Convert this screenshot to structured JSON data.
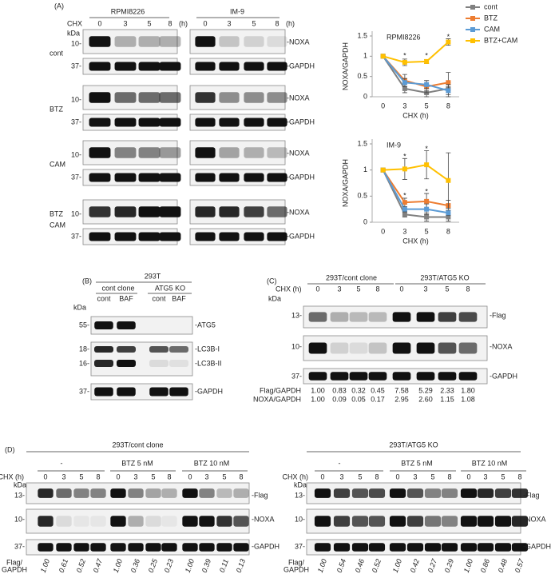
{
  "chart_data": [
    {
      "type": "line",
      "title": "RPMI8226",
      "categories": [
        "0",
        "3",
        "5",
        "8"
      ],
      "series": [
        {
          "name": "cont",
          "color": "#808080",
          "values": [
            1,
            0.2,
            0.1,
            0.2
          ],
          "errors": [
            0,
            0.1,
            0.1,
            0.15
          ]
        },
        {
          "name": "BTZ",
          "color": "#ed7d31",
          "values": [
            1,
            0.4,
            0.25,
            0.35
          ],
          "errors": [
            0,
            0.15,
            0.15,
            0.25
          ]
        },
        {
          "name": "CAM",
          "color": "#5b9bd5",
          "values": [
            1,
            0.35,
            0.3,
            0.15
          ],
          "errors": [
            0,
            0.1,
            0.1,
            0.15
          ]
        },
        {
          "name": "BTZ+CAM",
          "color": "#ffc000",
          "values": [
            1,
            0.85,
            0.87,
            1.35
          ],
          "errors": [
            0,
            0.08,
            0.05,
            0.08
          ]
        }
      ],
      "ylim": [
        0,
        1.5
      ],
      "yticks": [
        0,
        0.5,
        1,
        1.5
      ],
      "xlabel": "CHX (h)",
      "ylabel": "NOXA/GAPDH",
      "legend": "top-right",
      "annotations": [
        {
          "text": "*",
          "x": 1,
          "y": 1.0
        },
        {
          "text": "*",
          "x": 2,
          "y": 1.0
        },
        {
          "text": "*",
          "x": 3,
          "y": 1.47
        }
      ]
    },
    {
      "type": "line",
      "title": "IM-9",
      "categories": [
        "0",
        "3",
        "5",
        "8"
      ],
      "series": [
        {
          "color": "#808080",
          "values": [
            1,
            0.15,
            0.1,
            0.1
          ],
          "errors": [
            0,
            0.05,
            0.08,
            0.08
          ]
        },
        {
          "color": "#ed7d31",
          "values": [
            1,
            0.38,
            0.4,
            0.32
          ],
          "errors": [
            0,
            0.08,
            0.15,
            0.1
          ]
        },
        {
          "color": "#5b9bd5",
          "values": [
            1,
            0.25,
            0.25,
            0.18
          ],
          "errors": [
            0,
            0.05,
            0.1,
            0.05
          ]
        },
        {
          "color": "#ffc000",
          "values": [
            1,
            1.02,
            1.1,
            0.8
          ],
          "errors": [
            0,
            0.2,
            0.27,
            0.53
          ]
        }
      ],
      "ylim": [
        0,
        1.5
      ],
      "yticks": [
        0,
        0.5,
        1,
        1.5
      ],
      "xlabel": "CHX (h)",
      "ylabel": "NOXA/GAPDH",
      "annotations": [
        {
          "text": "*",
          "x": 1,
          "y": 1.25
        },
        {
          "text": "*",
          "x": 2,
          "y": 1.4
        },
        {
          "text": "*",
          "x": 1,
          "y": 0.5
        },
        {
          "text": "*",
          "x": 2,
          "y": 0.58
        }
      ]
    }
  ],
  "panel_a": {
    "label": "(A)",
    "cell_lines": [
      "RPMI8226",
      "IM-9"
    ],
    "chx": "CHX",
    "times": [
      "0",
      "3",
      "5",
      "8"
    ],
    "unit": "(h)",
    "kda": "kDa",
    "markers": [
      "10-",
      "37-"
    ],
    "proteins": [
      "-NOXA",
      "-GAPDH"
    ],
    "treatments": [
      [
        "cont"
      ],
      [
        "BTZ"
      ],
      [
        "CAM"
      ],
      [
        "BTZ",
        "CAM"
      ]
    ]
  },
  "panel_b": {
    "label": "(B)",
    "cell": "293T",
    "clones": [
      "cont clone",
      "ATG5 KO"
    ],
    "lanes": [
      "cont",
      "BAF",
      "cont",
      "BAF"
    ],
    "kda": "kDa",
    "markers": [
      "55-",
      "18-",
      "16-",
      "37-"
    ],
    "proteins": [
      "-ATG5",
      "-LC3B-I",
      "-LC3B-II",
      "-GAPDH"
    ]
  },
  "panel_c": {
    "label": "(C)",
    "clones": [
      "293T/cont clone",
      "293T/ATG5 KO"
    ],
    "chx": "CHX (h)",
    "times": [
      "0",
      "3",
      "5",
      "8"
    ],
    "kda": "kDa",
    "markers": [
      "13-",
      "10-",
      "37-"
    ],
    "proteins": [
      "-Flag",
      "-NOXA",
      "-GAPDH"
    ],
    "ratios": [
      {
        "name": "Flag/GAPDH",
        "values": [
          "1.00",
          "0.83",
          "0.32",
          "0.45",
          "7.58",
          "5.29",
          "2.33",
          "1.80"
        ]
      },
      {
        "name": "NOXA/GAPDH",
        "values": [
          "1.00",
          "0.09",
          "0.05",
          "0.17",
          "2.95",
          "2.60",
          "1.15",
          "1.08"
        ]
      }
    ]
  },
  "panel_d": {
    "label": "(D)",
    "chx": "CHX (h)",
    "times": [
      "0",
      "3",
      "5",
      "8"
    ],
    "kda": "kDa",
    "conditions": [
      "-",
      "BTZ 5 nM",
      "BTZ 10 nM"
    ],
    "markers": [
      "13-",
      "10-",
      "37-"
    ],
    "proteins": [
      "-Flag",
      "-NOXA",
      "-GAPDH"
    ],
    "ratio_label": [
      "Flag/",
      "GAPDH"
    ],
    "blots": [
      {
        "title": "293T/cont clone",
        "ratios": [
          "1.00",
          "0.61",
          "0.52",
          "0.47",
          "1.00",
          "0.36",
          "0.25",
          "0.23",
          "1.00",
          "0.39",
          "0.11",
          "0.13"
        ]
      },
      {
        "title": "293T/ATG5 KO",
        "ratios": [
          "1.00",
          "0.54",
          "0.46",
          "0.52",
          "1.00",
          "0.42",
          "0.27",
          "0.29",
          "1.00",
          "0.86",
          "0.48",
          "0.57"
        ]
      }
    ]
  }
}
